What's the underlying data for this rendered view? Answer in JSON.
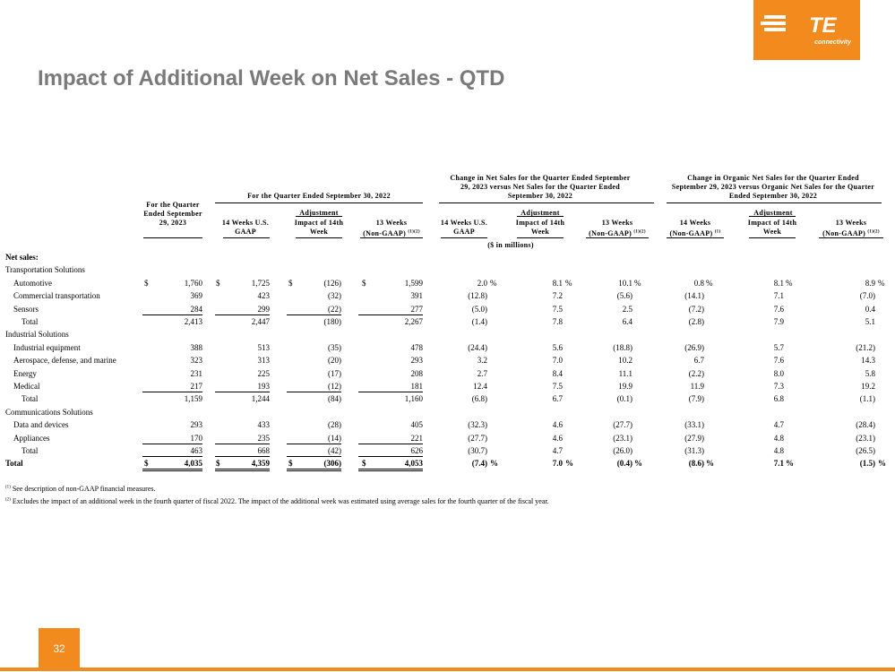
{
  "brand": {
    "logo_text": "TE",
    "logo_sub": "connectivity",
    "color": "#f28a1e"
  },
  "title": "Impact of Additional Week on Net Sales - QTD",
  "page_number": "32",
  "headers": {
    "col1": "For the Quarter Ended September 29, 2023",
    "group1": "For the Quarter Ended September 30, 2022",
    "g1_c1": "14 Weeks U.S. GAAP",
    "g1_c2_top": "Adjustment",
    "g1_c2": "Impact of 14th Week",
    "g1_c3": "13 Weeks (Non-GAAP)",
    "group2": "Change in Net Sales for the Quarter Ended September 29, 2023 versus Net Sales for the Quarter Ended September 30, 2022",
    "g2_c1": "14 Weeks U.S. GAAP",
    "g2_c2_top": "Adjustment",
    "g2_c2": "Impact of 14th Week",
    "g2_c3": "13 Weeks (Non-GAAP)",
    "group3": "Change in Organic Net Sales for the Quarter Ended September 29, 2023 versus Organic Net Sales for the Quarter Ended September 30, 2022",
    "g3_c1": "14 Weeks (Non-GAAP)",
    "g3_c2_top": "Adjustment",
    "g3_c2": "Impact of 14th Week",
    "g3_c3": "13 Weeks (Non-GAAP)",
    "units": "($ in millions)",
    "sup12": "(1)(2)",
    "sup1": "(1)"
  },
  "rows": [
    {
      "label": "Net sales:",
      "bold": true,
      "indent": 0,
      "vals": []
    },
    {
      "label": "Transportation Solutions",
      "indent": 0,
      "vals": []
    },
    {
      "label": "Automotive",
      "indent": 1,
      "dollar": true,
      "vals": [
        "1,760",
        "1,725",
        "(126)",
        "1,599",
        "2.0",
        "8.1",
        "10.1",
        "0.8",
        "8.1",
        "8.9"
      ],
      "pct": true
    },
    {
      "label": "Commercial transportation",
      "indent": 1,
      "vals": [
        "369",
        "423",
        "(32)",
        "391",
        "(12.8)",
        "7.2",
        "(5.6)",
        "(14.1)",
        "7.1",
        "(7.0)"
      ]
    },
    {
      "label": "Sensors",
      "indent": 1,
      "vals": [
        "284",
        "299",
        "(22)",
        "277",
        "(5.0)",
        "7.5",
        "2.5",
        "(7.2)",
        "7.6",
        "0.4"
      ],
      "underline": true
    },
    {
      "label": "Total",
      "indent": 2,
      "vals": [
        "2,413",
        "2,447",
        "(180)",
        "2,267",
        "(1.4)",
        "7.8",
        "6.4",
        "(2.8)",
        "7.9",
        "5.1"
      ]
    },
    {
      "label": "Industrial Solutions",
      "indent": 0,
      "vals": []
    },
    {
      "label": "Industrial equipment",
      "indent": 1,
      "vals": [
        "388",
        "513",
        "(35)",
        "478",
        "(24.4)",
        "5.6",
        "(18.8)",
        "(26.9)",
        "5.7",
        "(21.2)"
      ]
    },
    {
      "label": "Aerospace, defense, and marine",
      "indent": 1,
      "vals": [
        "323",
        "313",
        "(20)",
        "293",
        "3.2",
        "7.0",
        "10.2",
        "6.7",
        "7.6",
        "14.3"
      ]
    },
    {
      "label": "Energy",
      "indent": 1,
      "vals": [
        "231",
        "225",
        "(17)",
        "208",
        "2.7",
        "8.4",
        "11.1",
        "(2.2)",
        "8.0",
        "5.8"
      ]
    },
    {
      "label": "Medical",
      "indent": 1,
      "vals": [
        "217",
        "193",
        "(12)",
        "181",
        "12.4",
        "7.5",
        "19.9",
        "11.9",
        "7.3",
        "19.2"
      ],
      "underline": true
    },
    {
      "label": "Total",
      "indent": 2,
      "vals": [
        "1,159",
        "1,244",
        "(84)",
        "1,160",
        "(6.8)",
        "6.7",
        "(0.1)",
        "(7.9)",
        "6.8",
        "(1.1)"
      ]
    },
    {
      "label": "Communications Solutions",
      "indent": 0,
      "vals": []
    },
    {
      "label": "Data and devices",
      "indent": 1,
      "vals": [
        "293",
        "433",
        "(28)",
        "405",
        "(32.3)",
        "4.6",
        "(27.7)",
        "(33.1)",
        "4.7",
        "(28.4)"
      ]
    },
    {
      "label": "Appliances",
      "indent": 1,
      "vals": [
        "170",
        "235",
        "(14)",
        "221",
        "(27.7)",
        "4.6",
        "(23.1)",
        "(27.9)",
        "4.8",
        "(23.1)"
      ],
      "underline": true
    },
    {
      "label": "Total",
      "indent": 2,
      "vals": [
        "463",
        "668",
        "(42)",
        "626",
        "(30.7)",
        "4.7",
        "(26.0)",
        "(31.3)",
        "4.8",
        "(26.5)"
      ],
      "underline": true
    },
    {
      "label": "Total",
      "bold": true,
      "indent": 0,
      "dollar": true,
      "vals": [
        "4,035",
        "4,359",
        "(306)",
        "4,053",
        "(7.4)",
        "7.0",
        "(0.4)",
        "(8.6)",
        "7.1",
        "(1.5)"
      ],
      "pct": true,
      "dbl": true
    }
  ],
  "symbols": {
    "dollar": "$",
    "percent": "%"
  },
  "footnotes": [
    {
      "mark": "(1)",
      "text": " See description of non-GAAP financial measures."
    },
    {
      "mark": "(2)",
      "text": " Excludes the impact of an additional week in the fourth quarter of fiscal 2022. The impact of the additional week was estimated using average sales for the fourth quarter of the fiscal year."
    }
  ]
}
